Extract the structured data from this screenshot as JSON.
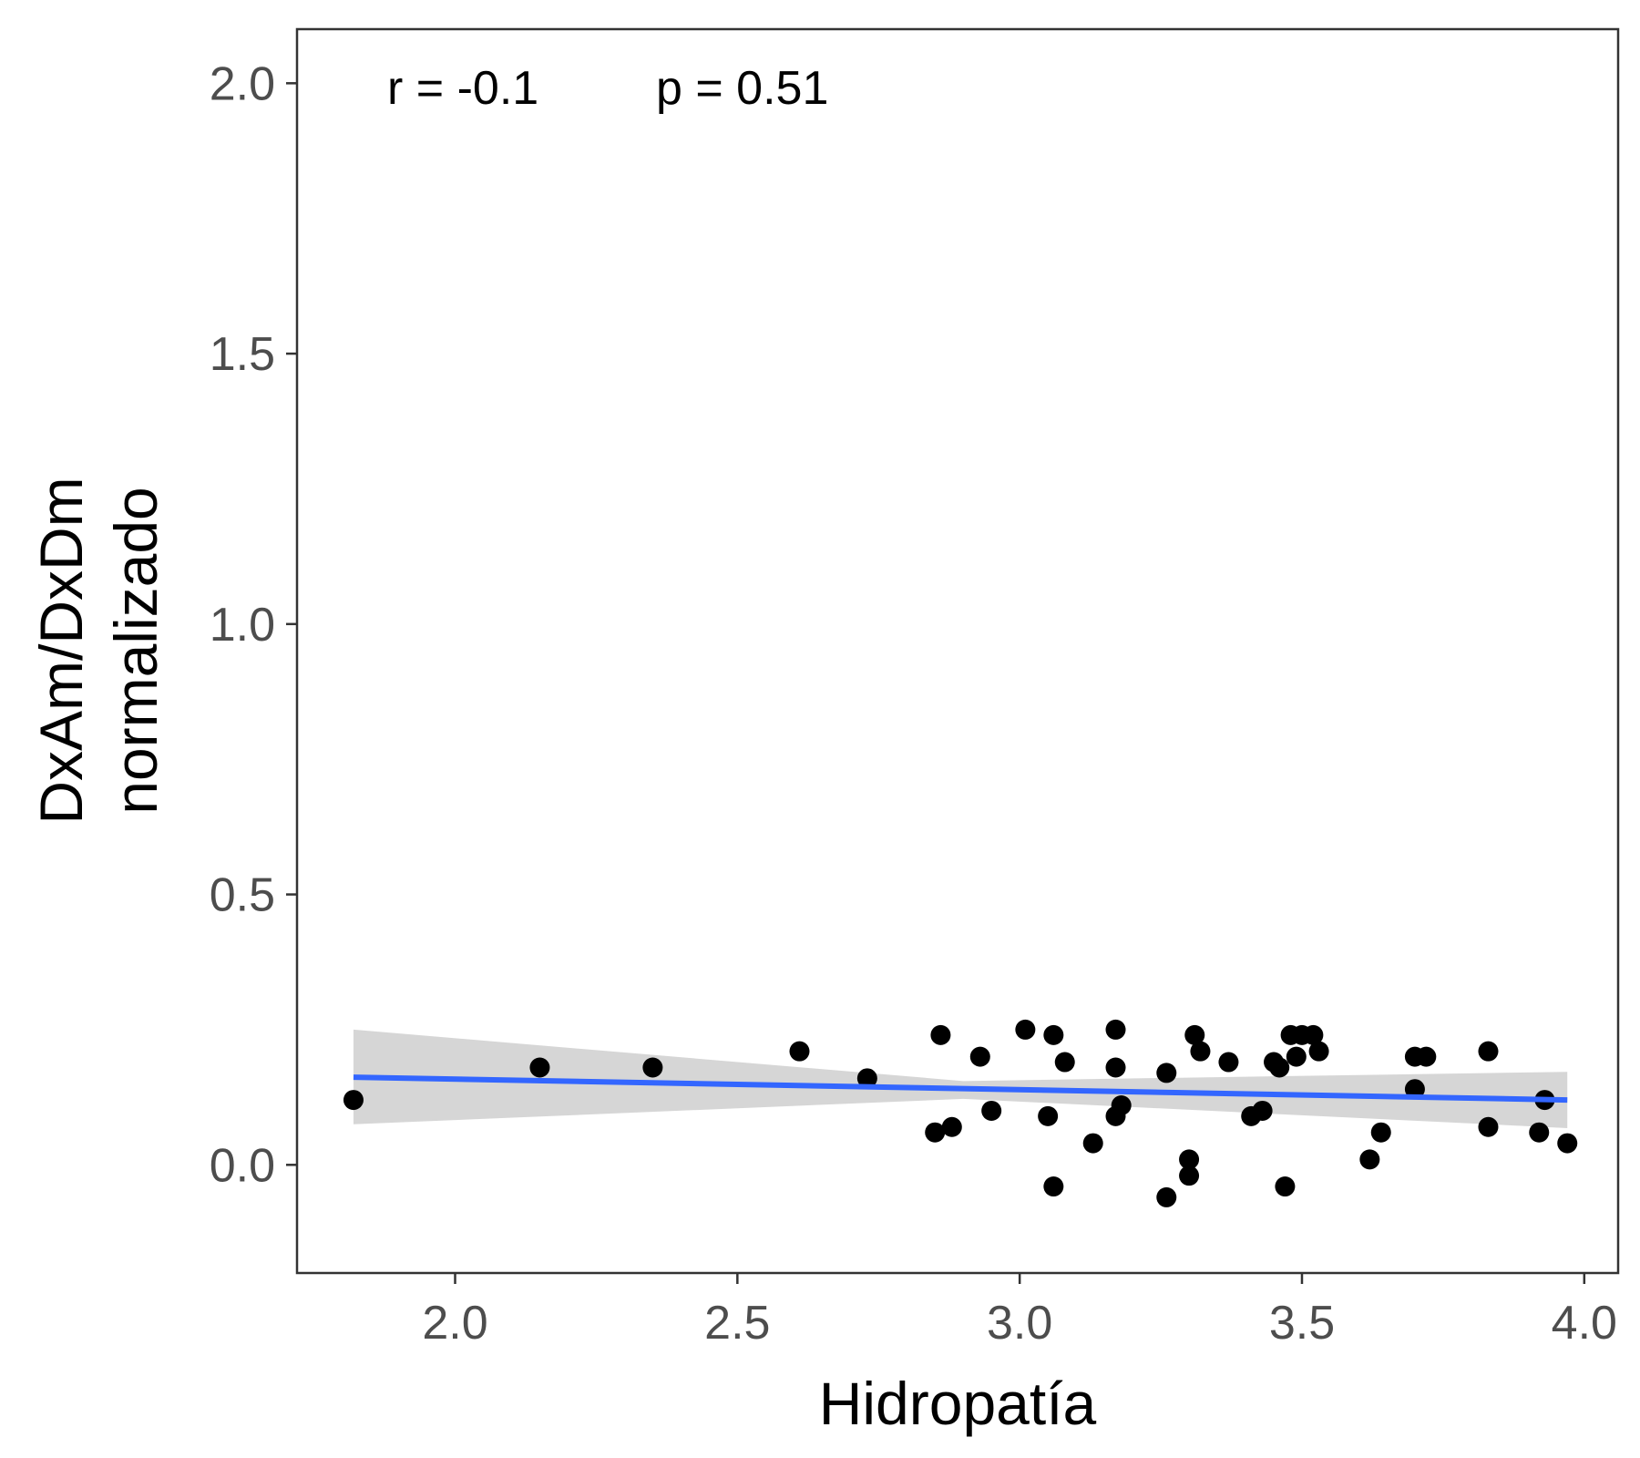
{
  "chart_data": {
    "type": "scatter",
    "title": "",
    "xlabel": "Hidropatía",
    "ylabel_lines": [
      "DxAm/DxDm",
      "normalizado"
    ],
    "xlim": [
      1.72,
      4.06
    ],
    "ylim": [
      -0.2,
      2.1
    ],
    "x_ticks": [
      2.0,
      2.5,
      3.0,
      3.5,
      4.0
    ],
    "x_tick_labels": [
      "2.0",
      "2.5",
      "3.0",
      "3.5",
      "4.0"
    ],
    "y_ticks": [
      0.0,
      0.5,
      1.0,
      1.5,
      2.0
    ],
    "y_tick_labels": [
      "0.0",
      "0.5",
      "1.0",
      "1.5",
      "2.0"
    ],
    "grid": false,
    "annotation": {
      "r": "r =  -0.1",
      "p": "p =  0.51"
    },
    "points": [
      {
        "x": 1.82,
        "y": 0.12
      },
      {
        "x": 2.15,
        "y": 0.18
      },
      {
        "x": 2.35,
        "y": 0.18
      },
      {
        "x": 2.61,
        "y": 0.21
      },
      {
        "x": 2.73,
        "y": 0.16
      },
      {
        "x": 2.85,
        "y": 0.06
      },
      {
        "x": 2.86,
        "y": 0.24
      },
      {
        "x": 2.88,
        "y": 0.07
      },
      {
        "x": 2.93,
        "y": 0.2
      },
      {
        "x": 2.95,
        "y": 0.1
      },
      {
        "x": 3.01,
        "y": 0.25
      },
      {
        "x": 3.05,
        "y": 0.09
      },
      {
        "x": 3.06,
        "y": -0.04
      },
      {
        "x": 3.06,
        "y": 0.24
      },
      {
        "x": 3.08,
        "y": 0.19
      },
      {
        "x": 3.13,
        "y": 0.04
      },
      {
        "x": 3.17,
        "y": 0.25
      },
      {
        "x": 3.17,
        "y": 0.18
      },
      {
        "x": 3.17,
        "y": 0.09
      },
      {
        "x": 3.18,
        "y": 0.11
      },
      {
        "x": 3.26,
        "y": 0.17
      },
      {
        "x": 3.26,
        "y": -0.06
      },
      {
        "x": 3.3,
        "y": 0.01
      },
      {
        "x": 3.3,
        "y": -0.02
      },
      {
        "x": 3.31,
        "y": 0.24
      },
      {
        "x": 3.32,
        "y": 0.21
      },
      {
        "x": 3.37,
        "y": 0.19
      },
      {
        "x": 3.41,
        "y": 0.09
      },
      {
        "x": 3.43,
        "y": 0.1
      },
      {
        "x": 3.45,
        "y": 0.19
      },
      {
        "x": 3.46,
        "y": 0.18
      },
      {
        "x": 3.47,
        "y": -0.04
      },
      {
        "x": 3.48,
        "y": 0.24
      },
      {
        "x": 3.49,
        "y": 0.2
      },
      {
        "x": 3.5,
        "y": 0.24
      },
      {
        "x": 3.52,
        "y": 0.24
      },
      {
        "x": 3.53,
        "y": 0.21
      },
      {
        "x": 3.62,
        "y": 0.01
      },
      {
        "x": 3.64,
        "y": 0.06
      },
      {
        "x": 3.7,
        "y": 0.2
      },
      {
        "x": 3.7,
        "y": 0.14
      },
      {
        "x": 3.72,
        "y": 0.2
      },
      {
        "x": 3.83,
        "y": 0.21
      },
      {
        "x": 3.83,
        "y": 0.07
      },
      {
        "x": 3.92,
        "y": 0.06
      },
      {
        "x": 3.93,
        "y": 0.12
      },
      {
        "x": 3.97,
        "y": 0.04
      }
    ],
    "fit": {
      "x": [
        1.82,
        3.97
      ],
      "y": [
        0.162,
        0.12
      ]
    },
    "ci_band": {
      "x": [
        1.82,
        2.9,
        3.97
      ],
      "lower": [
        0.075,
        0.122,
        0.068
      ],
      "upper": [
        0.25,
        0.155,
        0.172
      ]
    },
    "colors": {
      "points": "#000000",
      "fit_line": "#3366ff",
      "ci_band": "#cccccc",
      "frame": "#333333",
      "tick_text": "#4d4d4d",
      "background": "#ffffff"
    }
  }
}
